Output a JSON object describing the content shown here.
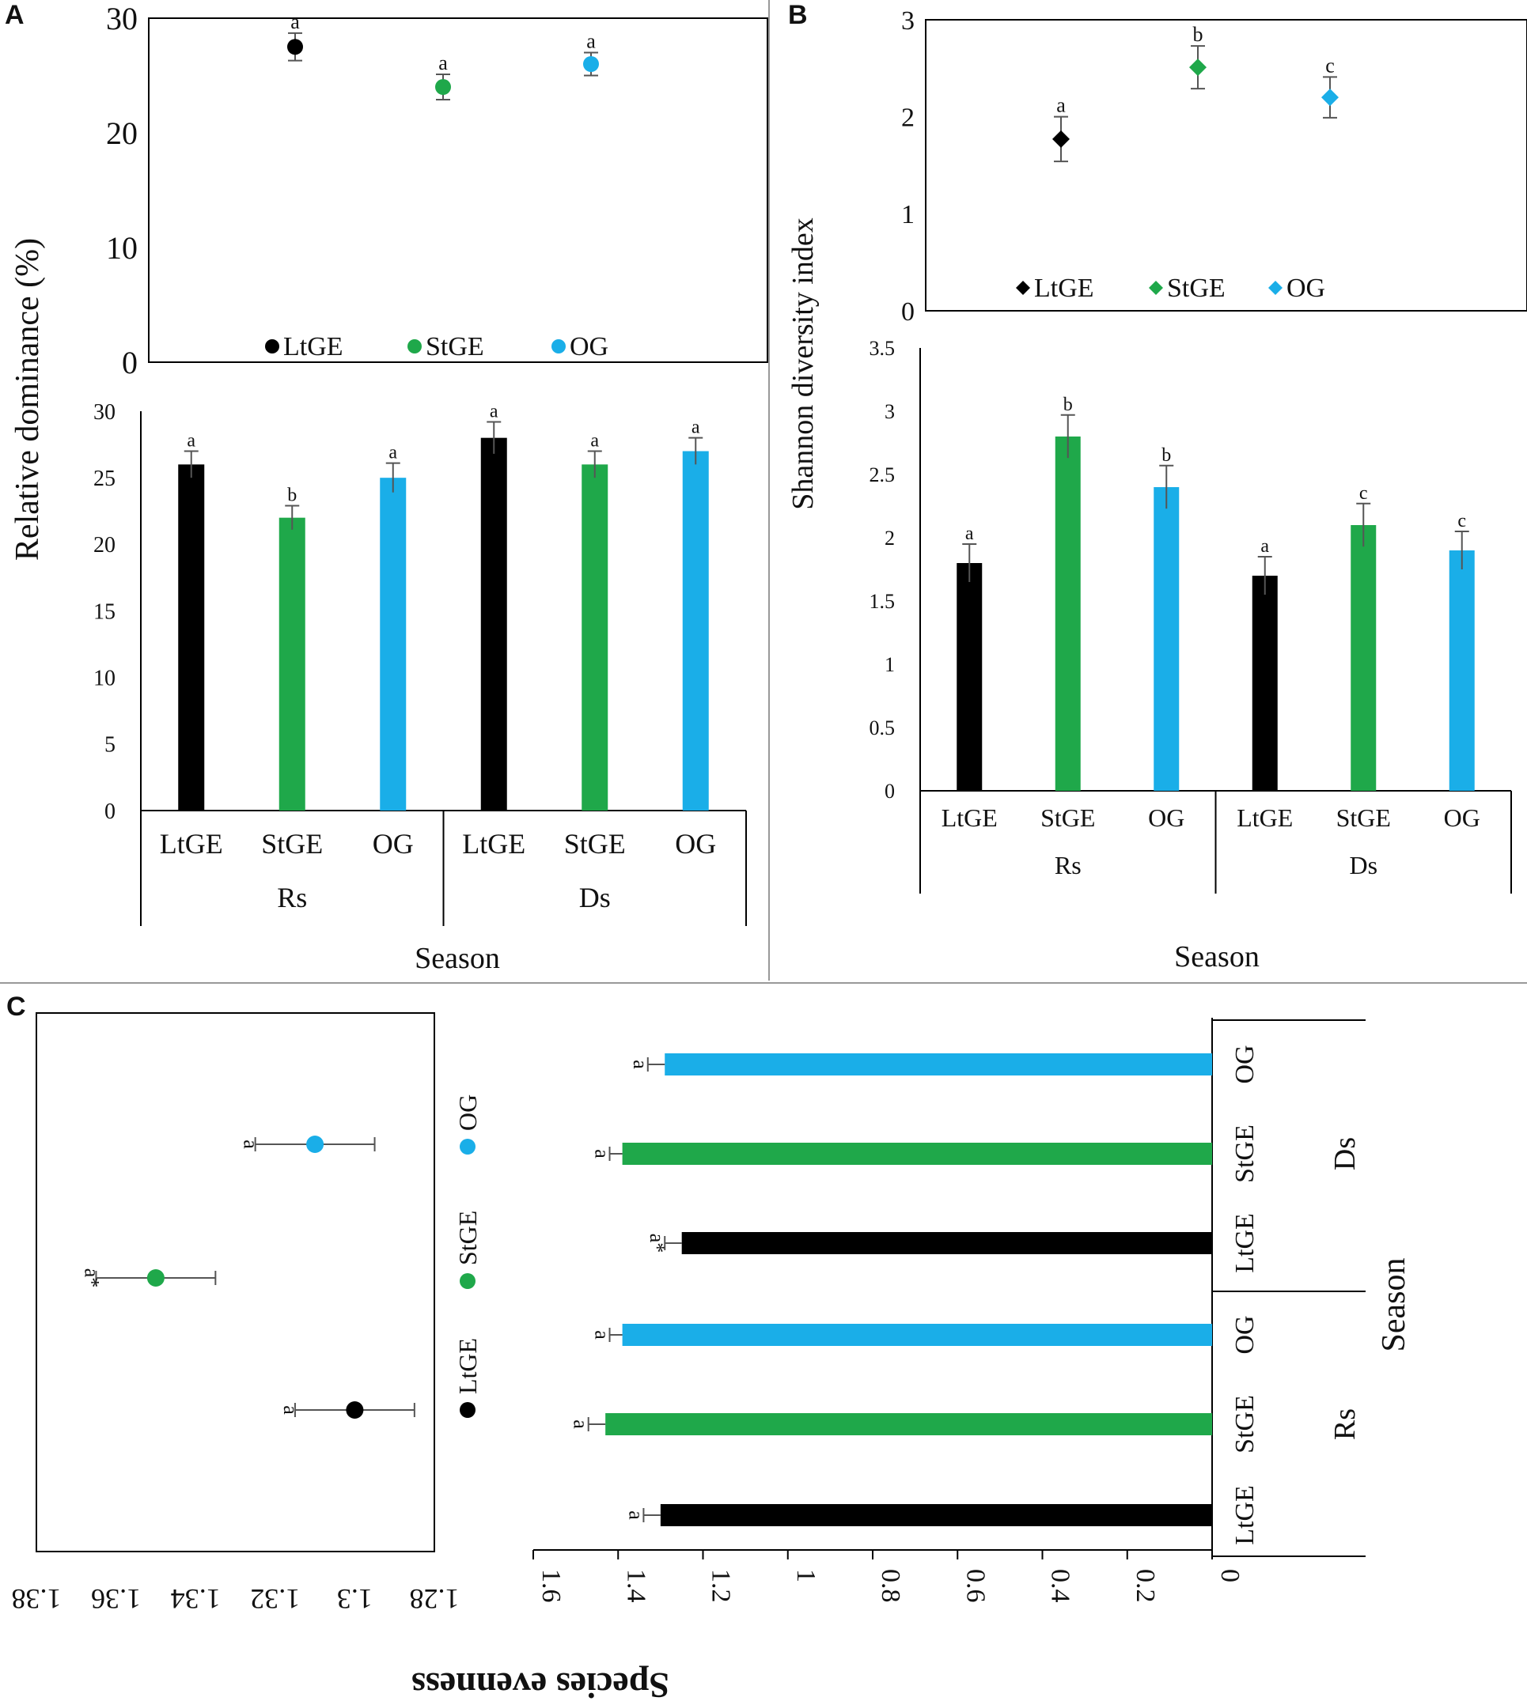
{
  "colors": {
    "LtGE": "#000000",
    "StGE": "#1fa84a",
    "OG": "#1aaee8",
    "axis": "#000000",
    "divider": "#999999",
    "errbar": "#555555"
  },
  "panels": {
    "A": {
      "letter": "A"
    },
    "B": {
      "letter": "B"
    },
    "C": {
      "letter": "C"
    }
  },
  "chart_data": [
    {
      "id": "A-top",
      "type": "scatter",
      "title": "",
      "ylabel": "Relative dominance (%)",
      "ylim": [
        0,
        30
      ],
      "yticks": [
        "0",
        "10",
        "20",
        "30"
      ],
      "legend": {
        "placement": "bottom-center",
        "entries": [
          "LtGE",
          "StGE",
          "OG"
        ]
      },
      "points": [
        {
          "group": "LtGE",
          "value": 27.5,
          "err": 1.2,
          "letter": "a"
        },
        {
          "group": "StGE",
          "value": 24,
          "err": 1.1,
          "letter": "a"
        },
        {
          "group": "OG",
          "value": 26,
          "err": 1.0,
          "letter": "a"
        }
      ]
    },
    {
      "id": "A-bottom",
      "type": "bar",
      "ylabel": "Relative dominance (%)",
      "xlabel": "Season",
      "ylim": [
        0,
        30
      ],
      "yticks": [
        "0",
        "5",
        "10",
        "15",
        "20",
        "25",
        "30"
      ],
      "categories": [
        "LtGE",
        "StGE",
        "OG",
        "LtGE",
        "StGE",
        "OG"
      ],
      "seasons": [
        "Rs",
        "Ds"
      ],
      "values": [
        26,
        22,
        25,
        28,
        26,
        27
      ],
      "errors": [
        1.0,
        0.9,
        1.1,
        1.2,
        1.0,
        1.0
      ],
      "letters": [
        "a",
        "b",
        "a",
        "a",
        "a",
        "a"
      ]
    },
    {
      "id": "B-top",
      "type": "scatter",
      "ylabel": "Shannon diversity index",
      "ylim": [
        0,
        3
      ],
      "yticks": [
        "0",
        "1",
        "2",
        "3"
      ],
      "legend": {
        "placement": "bottom-center",
        "entries": [
          "LtGE",
          "StGE",
          "OG"
        ]
      },
      "points": [
        {
          "group": "LtGE",
          "value": 1.77,
          "err": 0.23,
          "letter": "a"
        },
        {
          "group": "StGE",
          "value": 2.51,
          "err": 0.22,
          "letter": "b"
        },
        {
          "group": "OG",
          "value": 2.2,
          "err": 0.21,
          "letter": "c"
        }
      ]
    },
    {
      "id": "B-bottom",
      "type": "bar",
      "ylabel": "Shannon diversity index",
      "xlabel": "Season",
      "ylim": [
        0,
        3.5
      ],
      "yticks": [
        "0",
        "0.5",
        "1",
        "1.5",
        "2",
        "2.5",
        "3",
        "3.5"
      ],
      "categories": [
        "LtGE",
        "StGE",
        "OG",
        "LtGE",
        "StGE",
        "OG"
      ],
      "seasons": [
        "Rs",
        "Ds"
      ],
      "values": [
        1.8,
        2.8,
        2.4,
        1.7,
        2.1,
        1.9
      ],
      "errors": [
        0.15,
        0.17,
        0.17,
        0.15,
        0.17,
        0.15
      ],
      "letters": [
        "a",
        "b",
        "b",
        "a",
        "c",
        "c"
      ]
    },
    {
      "id": "C-left",
      "type": "scatter",
      "xlabel": "Species evenness",
      "xlim": [
        1.28,
        1.38
      ],
      "xticks": [
        "1.28",
        "1.3",
        "1.32",
        "1.34",
        "1.36",
        "1.38"
      ],
      "legend": {
        "placement": "right",
        "entries": [
          "LtGE",
          "StGE",
          "OG"
        ]
      },
      "points": [
        {
          "group": "LtGE",
          "value": 1.3,
          "err": 0.015,
          "letter": "a"
        },
        {
          "group": "StGE",
          "value": 1.35,
          "err": 0.015,
          "letter": "a*"
        },
        {
          "group": "OG",
          "value": 1.31,
          "err": 0.015,
          "letter": "a"
        }
      ]
    },
    {
      "id": "C-right",
      "type": "bar",
      "orientation": "horizontal",
      "xlabel": "Species evenness",
      "ylabel": "Season",
      "xlim": [
        0,
        1.6
      ],
      "xticks": [
        "0",
        "0.2",
        "0.4",
        "0.6",
        "0.8",
        "1",
        "1.2",
        "1.4",
        "1.6"
      ],
      "categories": [
        "LtGE",
        "StGE",
        "OG",
        "LtGE",
        "StGE",
        "OG"
      ],
      "seasons": [
        "Rs",
        "Ds"
      ],
      "values": [
        1.3,
        1.43,
        1.39,
        1.25,
        1.39,
        1.29
      ],
      "errors": [
        0.04,
        0.04,
        0.03,
        0.04,
        0.03,
        0.04
      ],
      "letters": [
        "a",
        "a",
        "a",
        "a*",
        "a",
        "a"
      ]
    }
  ]
}
